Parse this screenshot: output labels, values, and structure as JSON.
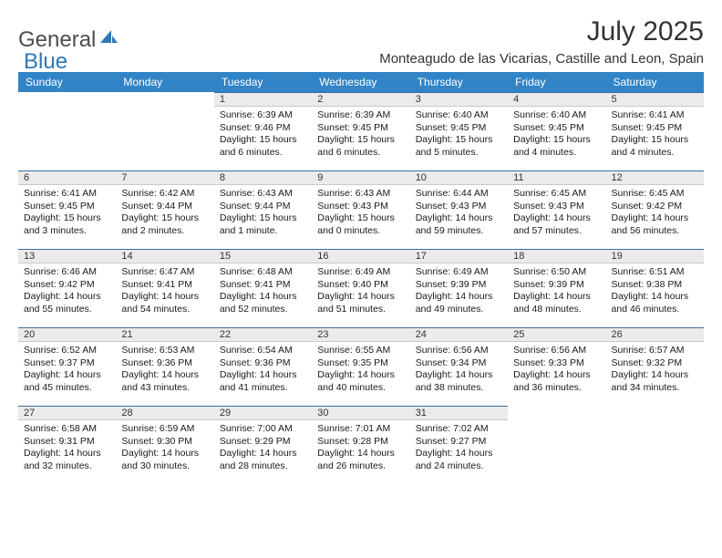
{
  "brand": {
    "part1": "General",
    "part2": "Blue"
  },
  "title": "July 2025",
  "location": "Monteagudo de las Vicarias, Castille and Leon, Spain",
  "colors": {
    "header_bg": "#3184c6",
    "header_text": "#ffffff",
    "daybar_bg": "#ebebeb",
    "daybar_border_top": "#3a6fa0",
    "brand_gray": "#4d4d4d",
    "brand_blue": "#2f78b7"
  },
  "weekdays": [
    "Sunday",
    "Monday",
    "Tuesday",
    "Wednesday",
    "Thursday",
    "Friday",
    "Saturday"
  ],
  "weeks": [
    [
      {
        "n": "",
        "sunrise": "",
        "sunset": "",
        "daylight": ""
      },
      {
        "n": "",
        "sunrise": "",
        "sunset": "",
        "daylight": ""
      },
      {
        "n": "1",
        "sunrise": "Sunrise: 6:39 AM",
        "sunset": "Sunset: 9:46 PM",
        "daylight": "Daylight: 15 hours and 6 minutes."
      },
      {
        "n": "2",
        "sunrise": "Sunrise: 6:39 AM",
        "sunset": "Sunset: 9:45 PM",
        "daylight": "Daylight: 15 hours and 6 minutes."
      },
      {
        "n": "3",
        "sunrise": "Sunrise: 6:40 AM",
        "sunset": "Sunset: 9:45 PM",
        "daylight": "Daylight: 15 hours and 5 minutes."
      },
      {
        "n": "4",
        "sunrise": "Sunrise: 6:40 AM",
        "sunset": "Sunset: 9:45 PM",
        "daylight": "Daylight: 15 hours and 4 minutes."
      },
      {
        "n": "5",
        "sunrise": "Sunrise: 6:41 AM",
        "sunset": "Sunset: 9:45 PM",
        "daylight": "Daylight: 15 hours and 4 minutes."
      }
    ],
    [
      {
        "n": "6",
        "sunrise": "Sunrise: 6:41 AM",
        "sunset": "Sunset: 9:45 PM",
        "daylight": "Daylight: 15 hours and 3 minutes."
      },
      {
        "n": "7",
        "sunrise": "Sunrise: 6:42 AM",
        "sunset": "Sunset: 9:44 PM",
        "daylight": "Daylight: 15 hours and 2 minutes."
      },
      {
        "n": "8",
        "sunrise": "Sunrise: 6:43 AM",
        "sunset": "Sunset: 9:44 PM",
        "daylight": "Daylight: 15 hours and 1 minute."
      },
      {
        "n": "9",
        "sunrise": "Sunrise: 6:43 AM",
        "sunset": "Sunset: 9:43 PM",
        "daylight": "Daylight: 15 hours and 0 minutes."
      },
      {
        "n": "10",
        "sunrise": "Sunrise: 6:44 AM",
        "sunset": "Sunset: 9:43 PM",
        "daylight": "Daylight: 14 hours and 59 minutes."
      },
      {
        "n": "11",
        "sunrise": "Sunrise: 6:45 AM",
        "sunset": "Sunset: 9:43 PM",
        "daylight": "Daylight: 14 hours and 57 minutes."
      },
      {
        "n": "12",
        "sunrise": "Sunrise: 6:45 AM",
        "sunset": "Sunset: 9:42 PM",
        "daylight": "Daylight: 14 hours and 56 minutes."
      }
    ],
    [
      {
        "n": "13",
        "sunrise": "Sunrise: 6:46 AM",
        "sunset": "Sunset: 9:42 PM",
        "daylight": "Daylight: 14 hours and 55 minutes."
      },
      {
        "n": "14",
        "sunrise": "Sunrise: 6:47 AM",
        "sunset": "Sunset: 9:41 PM",
        "daylight": "Daylight: 14 hours and 54 minutes."
      },
      {
        "n": "15",
        "sunrise": "Sunrise: 6:48 AM",
        "sunset": "Sunset: 9:41 PM",
        "daylight": "Daylight: 14 hours and 52 minutes."
      },
      {
        "n": "16",
        "sunrise": "Sunrise: 6:49 AM",
        "sunset": "Sunset: 9:40 PM",
        "daylight": "Daylight: 14 hours and 51 minutes."
      },
      {
        "n": "17",
        "sunrise": "Sunrise: 6:49 AM",
        "sunset": "Sunset: 9:39 PM",
        "daylight": "Daylight: 14 hours and 49 minutes."
      },
      {
        "n": "18",
        "sunrise": "Sunrise: 6:50 AM",
        "sunset": "Sunset: 9:39 PM",
        "daylight": "Daylight: 14 hours and 48 minutes."
      },
      {
        "n": "19",
        "sunrise": "Sunrise: 6:51 AM",
        "sunset": "Sunset: 9:38 PM",
        "daylight": "Daylight: 14 hours and 46 minutes."
      }
    ],
    [
      {
        "n": "20",
        "sunrise": "Sunrise: 6:52 AM",
        "sunset": "Sunset: 9:37 PM",
        "daylight": "Daylight: 14 hours and 45 minutes."
      },
      {
        "n": "21",
        "sunrise": "Sunrise: 6:53 AM",
        "sunset": "Sunset: 9:36 PM",
        "daylight": "Daylight: 14 hours and 43 minutes."
      },
      {
        "n": "22",
        "sunrise": "Sunrise: 6:54 AM",
        "sunset": "Sunset: 9:36 PM",
        "daylight": "Daylight: 14 hours and 41 minutes."
      },
      {
        "n": "23",
        "sunrise": "Sunrise: 6:55 AM",
        "sunset": "Sunset: 9:35 PM",
        "daylight": "Daylight: 14 hours and 40 minutes."
      },
      {
        "n": "24",
        "sunrise": "Sunrise: 6:56 AM",
        "sunset": "Sunset: 9:34 PM",
        "daylight": "Daylight: 14 hours and 38 minutes."
      },
      {
        "n": "25",
        "sunrise": "Sunrise: 6:56 AM",
        "sunset": "Sunset: 9:33 PM",
        "daylight": "Daylight: 14 hours and 36 minutes."
      },
      {
        "n": "26",
        "sunrise": "Sunrise: 6:57 AM",
        "sunset": "Sunset: 9:32 PM",
        "daylight": "Daylight: 14 hours and 34 minutes."
      }
    ],
    [
      {
        "n": "27",
        "sunrise": "Sunrise: 6:58 AM",
        "sunset": "Sunset: 9:31 PM",
        "daylight": "Daylight: 14 hours and 32 minutes."
      },
      {
        "n": "28",
        "sunrise": "Sunrise: 6:59 AM",
        "sunset": "Sunset: 9:30 PM",
        "daylight": "Daylight: 14 hours and 30 minutes."
      },
      {
        "n": "29",
        "sunrise": "Sunrise: 7:00 AM",
        "sunset": "Sunset: 9:29 PM",
        "daylight": "Daylight: 14 hours and 28 minutes."
      },
      {
        "n": "30",
        "sunrise": "Sunrise: 7:01 AM",
        "sunset": "Sunset: 9:28 PM",
        "daylight": "Daylight: 14 hours and 26 minutes."
      },
      {
        "n": "31",
        "sunrise": "Sunrise: 7:02 AM",
        "sunset": "Sunset: 9:27 PM",
        "daylight": "Daylight: 14 hours and 24 minutes."
      },
      {
        "n": "",
        "sunrise": "",
        "sunset": "",
        "daylight": ""
      },
      {
        "n": "",
        "sunrise": "",
        "sunset": "",
        "daylight": ""
      }
    ]
  ]
}
